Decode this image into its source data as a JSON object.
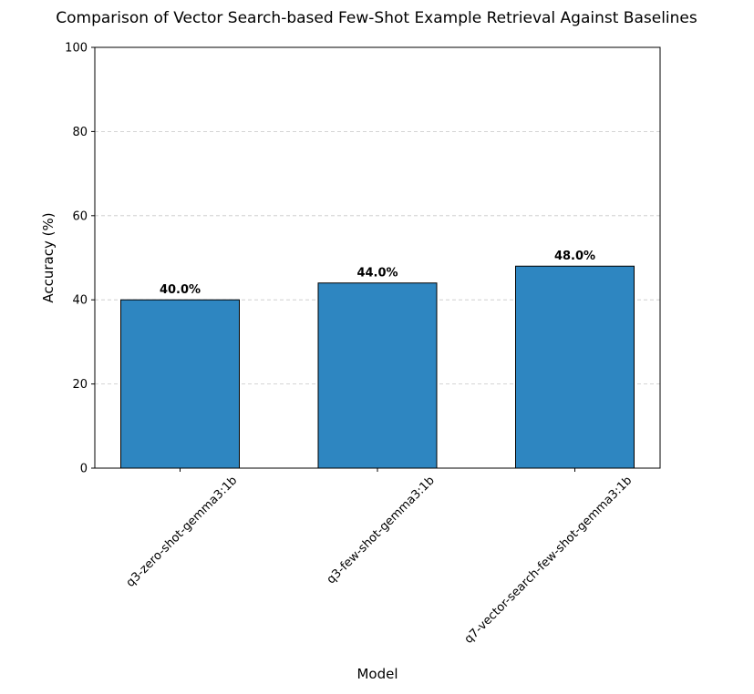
{
  "chart_data": {
    "type": "bar",
    "title": "Comparison of Vector Search-based Few-Shot Example Retrieval Against Baselines",
    "xlabel": "Model",
    "ylabel": "Accuracy (%)",
    "categories": [
      "q3-zero-shot-gemma3:1b",
      "q3-few-shot-gemma3:1b",
      "q7-vector-search-few-shot-gemma3:1b"
    ],
    "values": [
      40.0,
      44.0,
      48.0
    ],
    "value_labels": [
      "40.0%",
      "44.0%",
      "48.0%"
    ],
    "ylim": [
      0,
      100
    ],
    "yticks": [
      0,
      20,
      40,
      60,
      80,
      100
    ],
    "ytick_labels": [
      "0",
      "20",
      "40",
      "60",
      "80",
      "100"
    ],
    "grid": "y-dashed",
    "bar_color": "#2e86c1",
    "edge_color": "#000000"
  }
}
